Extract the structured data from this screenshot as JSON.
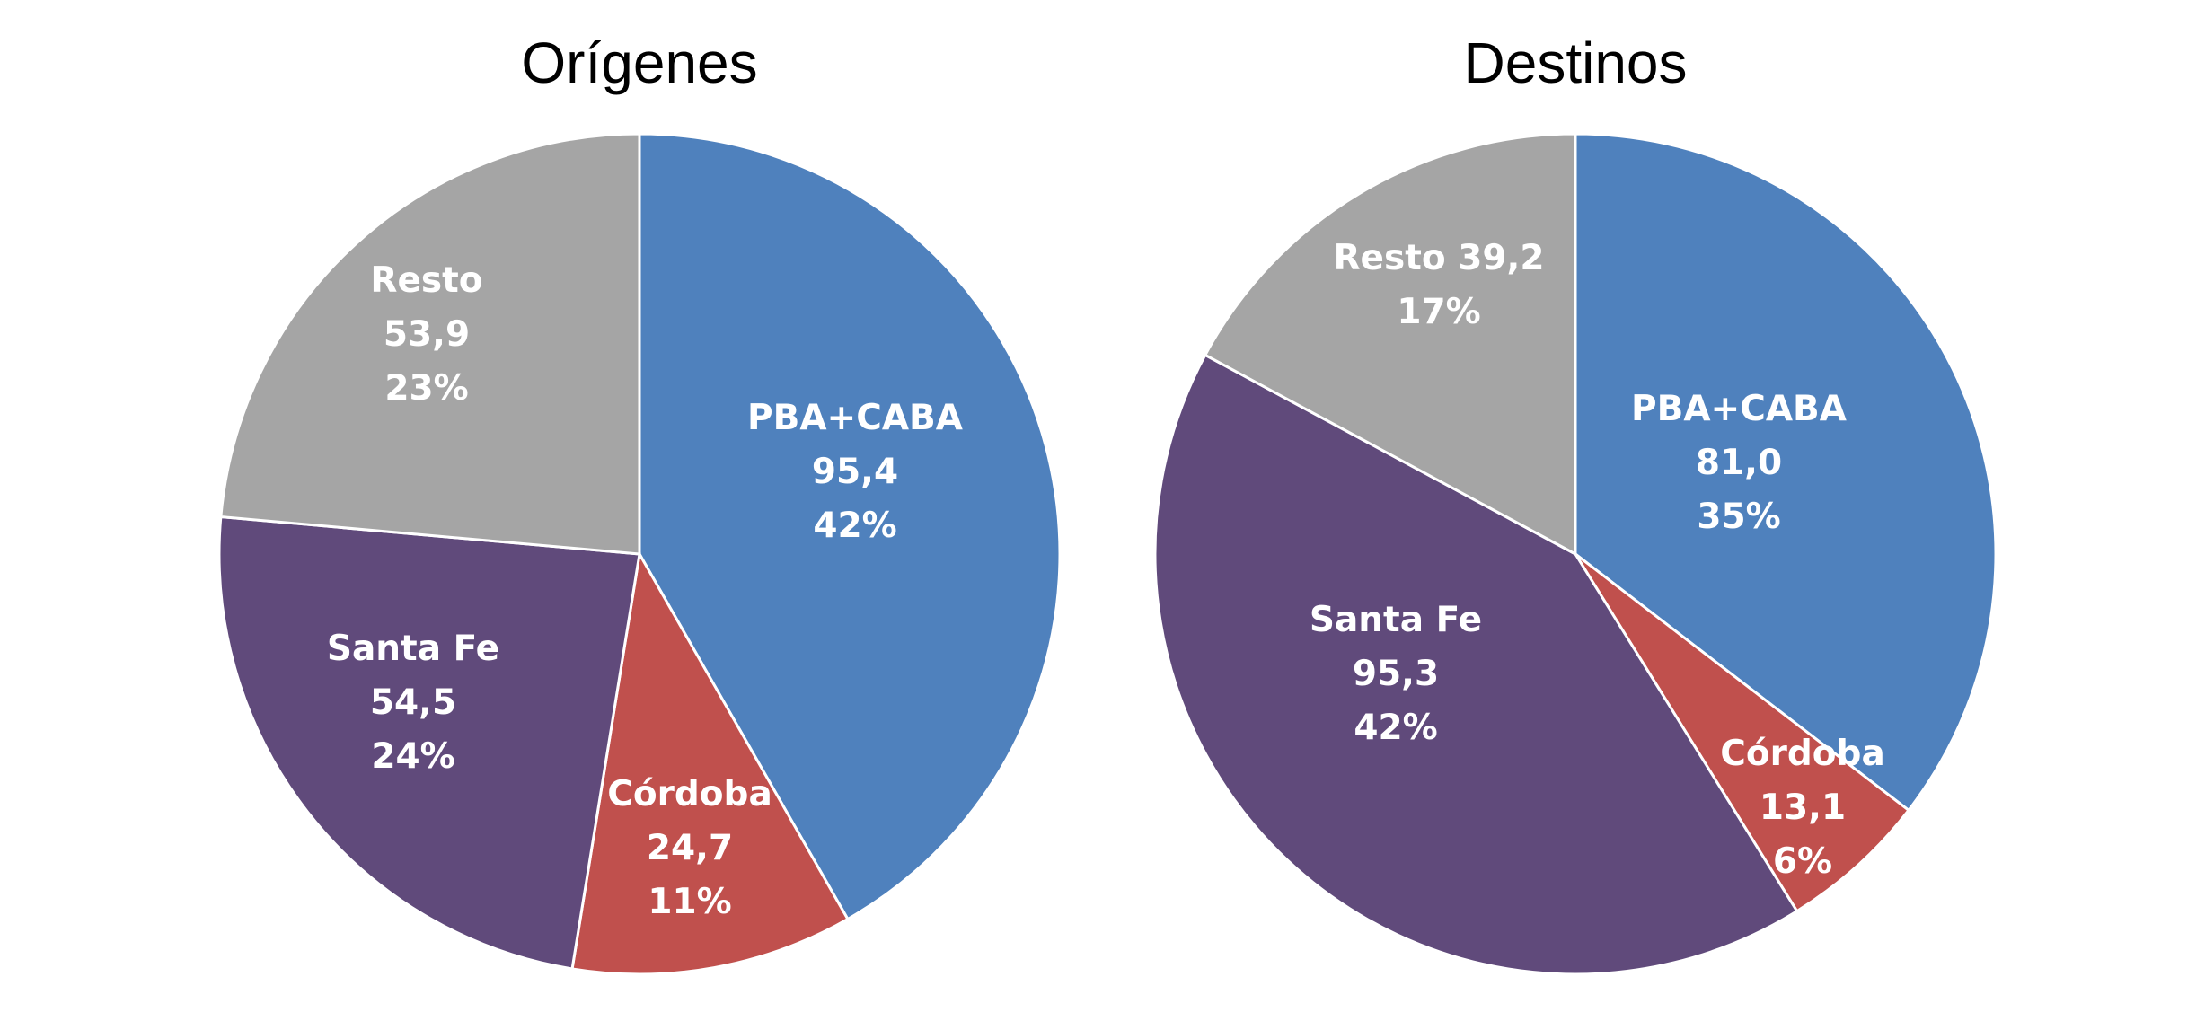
{
  "chart_data": [
    {
      "type": "pie",
      "title": "Orígenes",
      "slices": [
        {
          "name": "PBA+CABA",
          "value": 95.4,
          "value_label": "95,4",
          "percent_label": "42%",
          "color": "#4F81BD"
        },
        {
          "name": "Córdoba",
          "value": 24.7,
          "value_label": "24,7",
          "percent_label": "11%",
          "color": "#C0504D"
        },
        {
          "name": "Santa Fe",
          "value": 54.5,
          "value_label": "54,5",
          "percent_label": "24%",
          "color": "#604A7B"
        },
        {
          "name": "Resto",
          "value": 53.9,
          "value_label": "53,9",
          "percent_label": "23%",
          "color": "#A5A5A5"
        }
      ]
    },
    {
      "type": "pie",
      "title": "Destinos",
      "slices": [
        {
          "name": "PBA+CABA",
          "value": 81.0,
          "value_label": "81,0",
          "percent_label": "35%",
          "color": "#4F81BD"
        },
        {
          "name": "Córdoba",
          "value": 13.1,
          "value_label": "13,1",
          "percent_label": "6%",
          "color": "#C0504D"
        },
        {
          "name": "Santa Fe",
          "value": 95.3,
          "value_label": "95,3",
          "percent_label": "42%",
          "color": "#604A7B"
        },
        {
          "name": "Resto",
          "value": 39.2,
          "value_label": "39,2",
          "percent_label": "17%",
          "color": "#A5A5A5"
        }
      ]
    }
  ]
}
